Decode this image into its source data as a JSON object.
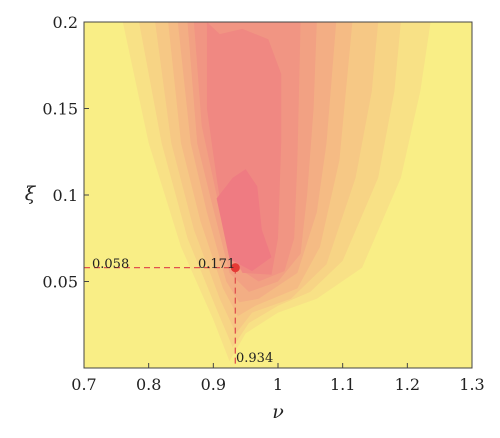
{
  "chart_data": {
    "type": "heatmap",
    "title": "",
    "xlabel": "ν",
    "ylabel": "ξ",
    "xlim": [
      0.7,
      1.3
    ],
    "ylim": [
      0.0,
      0.2
    ],
    "x_ticks": [
      {
        "value": 0.7,
        "label": "0.7"
      },
      {
        "value": 0.8,
        "label": "0.8"
      },
      {
        "value": 0.9,
        "label": "0.9"
      },
      {
        "value": 1.0,
        "label": "1"
      },
      {
        "value": 1.1,
        "label": "1.1"
      },
      {
        "value": 1.2,
        "label": "1.2"
      },
      {
        "value": 1.3,
        "label": "1.3"
      }
    ],
    "y_ticks": [
      {
        "value": 0.05,
        "label": "0.05"
      },
      {
        "value": 0.1,
        "label": "0.1"
      },
      {
        "value": 0.15,
        "label": "0.15"
      },
      {
        "value": 0.2,
        "label": "0.2"
      }
    ],
    "colors": {
      "low": "#f9ee86",
      "high": "#ef7b82",
      "marker": "#e53935",
      "guide": "#e0514e"
    },
    "optimum": {
      "nu": 0.934,
      "xi": 0.058,
      "value": 0.171,
      "nu_label": "0.934",
      "xi_label": "0.058",
      "value_label": "0.171"
    },
    "grid": false,
    "legend": "none"
  }
}
